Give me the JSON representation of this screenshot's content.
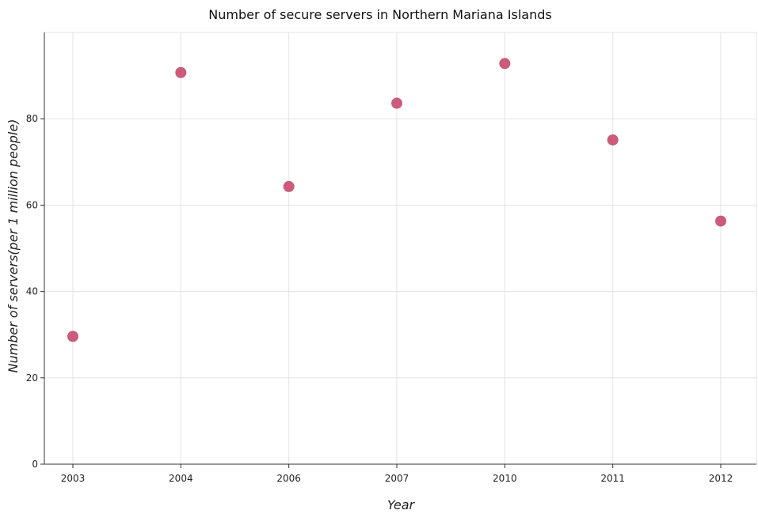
{
  "chart_data": {
    "type": "scatter",
    "title": "Number of secure servers in Northern Mariana Islands",
    "xlabel": "Year",
    "ylabel": "Number of servers(per 1 million people)",
    "categories": [
      "2003",
      "2004",
      "2006",
      "2007",
      "2010",
      "2011",
      "2012"
    ],
    "series": [
      {
        "values": [
          29.6,
          90.7,
          64.3,
          83.6,
          92.8,
          75.1,
          56.3
        ]
      }
    ],
    "ylim": [
      0,
      100
    ],
    "yticks": [
      0,
      20,
      40,
      60,
      80
    ],
    "grid": true,
    "point_color": "#cc5a7a"
  }
}
